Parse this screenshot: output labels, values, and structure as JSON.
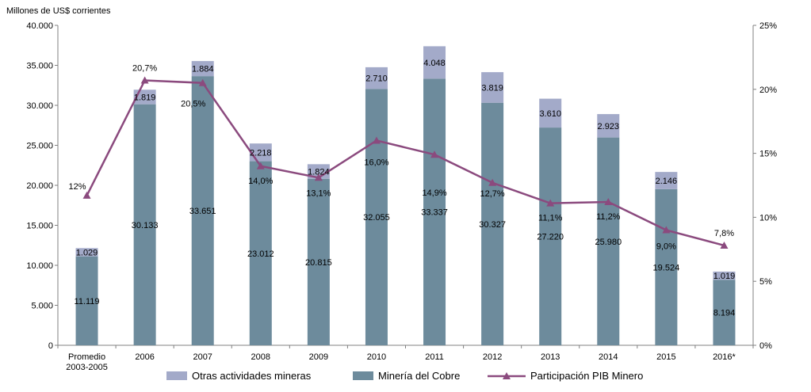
{
  "chart_data": {
    "type": "bar",
    "ylabel": "Millones de US$ corrientes",
    "categories": [
      [
        "Promedio",
        "2003-2005"
      ],
      [
        "2006"
      ],
      [
        "2007"
      ],
      [
        "2008"
      ],
      [
        "2009"
      ],
      [
        "2010"
      ],
      [
        "2011"
      ],
      [
        "2012"
      ],
      [
        "2013"
      ],
      [
        "2014"
      ],
      [
        "2015"
      ],
      [
        "2016*"
      ]
    ],
    "series": [
      {
        "name": "Minería del Cobre",
        "kind": "stacked-bar",
        "color": "#6d8b9c",
        "values": [
          11119,
          30133,
          33651,
          23012,
          20815,
          32055,
          33337,
          30327,
          27220,
          25980,
          19524,
          8194
        ],
        "labels": [
          "11.119",
          "30.133",
          "33.651",
          "23.012",
          "20.815",
          "32.055",
          "33.337",
          "30.327",
          "27.220",
          "25.980",
          "19.524",
          "8.194"
        ]
      },
      {
        "name": "Otras actividades mineras",
        "kind": "stacked-bar",
        "color": "#a3aac9",
        "values": [
          1029,
          1819,
          1884,
          2218,
          1824,
          2710,
          4048,
          3819,
          3610,
          2923,
          2146,
          1019
        ],
        "labels": [
          "1.029",
          "1.819",
          "1.884",
          "2.218",
          "1.824",
          "2.710",
          "4.048",
          "3.819",
          "3.610",
          "2.923",
          "2.146",
          "1.019"
        ]
      },
      {
        "name": "Participación PIB Minero",
        "kind": "line",
        "axis": "right",
        "color": "#8b4a7e",
        "values": [
          11.7,
          20.7,
          20.5,
          14.0,
          13.1,
          16.0,
          14.9,
          12.7,
          11.1,
          11.2,
          9.0,
          7.8
        ],
        "labels": [
          "12%",
          "20,7%",
          "20,5%",
          "14,0%",
          "13,1%",
          "16,0%",
          "14,9%",
          "12,7%",
          "11,1%",
          "11,2%",
          "9,0%",
          "7,8%"
        ]
      }
    ],
    "y_left": {
      "min": 0,
      "max": 40000,
      "ticks": [
        "0",
        "5.000",
        "10.000",
        "15.000",
        "20.000",
        "25.000",
        "30.000",
        "35.000",
        "40.000"
      ]
    },
    "y_right": {
      "min": 0,
      "max": 25,
      "ticks": [
        "0%",
        "5%",
        "10%",
        "15%",
        "20%",
        "25%"
      ]
    },
    "legend": {
      "placement": "bottom",
      "order": [
        "Otras actividades mineras",
        "Minería del Cobre",
        "Participación PIB Minero"
      ]
    }
  }
}
